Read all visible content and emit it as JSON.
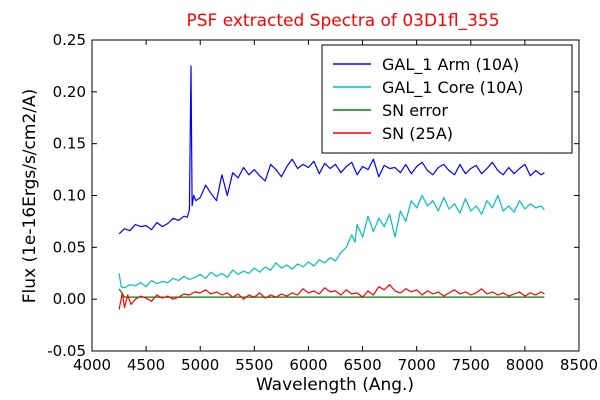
{
  "chart_data": {
    "type": "line",
    "title": "PSF extracted Spectra of 03D1fl_355",
    "title_color": "#ff0000",
    "xlabel": "Wavelength (Ang.)",
    "ylabel": "Flux (1e-16Ergs/s/cm2/A)",
    "xlim": [
      4000,
      8500
    ],
    "ylim": [
      -0.05,
      0.25
    ],
    "xticks": [
      4000,
      4500,
      5000,
      5500,
      6000,
      6500,
      7000,
      7500,
      8000,
      8500
    ],
    "xtick_labels": [
      "4000",
      "4500",
      "5000",
      "5500",
      "6000",
      "6500",
      "7000",
      "7500",
      "8000",
      "8500"
    ],
    "yticks": [
      -0.05,
      0.0,
      0.05,
      0.1,
      0.15,
      0.2,
      0.25
    ],
    "ytick_labels": [
      "-0.05",
      "0.00",
      "0.05",
      "0.10",
      "0.15",
      "0.20",
      "0.25"
    ],
    "grid": false,
    "legend_position": "top-right",
    "series": [
      {
        "name": "GAL_1 Arm (10A)",
        "color": "#0000ff",
        "x": [
          4250,
          4300,
          4350,
          4400,
          4450,
          4500,
          4550,
          4600,
          4650,
          4700,
          4750,
          4800,
          4850,
          4880,
          4900,
          4915,
          4925,
          4940,
          4960,
          5000,
          5050,
          5100,
          5150,
          5200,
          5250,
          5300,
          5350,
          5400,
          5450,
          5500,
          5550,
          5600,
          5650,
          5700,
          5750,
          5800,
          5850,
          5900,
          5950,
          6000,
          6050,
          6100,
          6150,
          6200,
          6250,
          6300,
          6350,
          6400,
          6450,
          6500,
          6550,
          6600,
          6650,
          6700,
          6750,
          6800,
          6850,
          6900,
          6950,
          7000,
          7050,
          7100,
          7150,
          7200,
          7250,
          7300,
          7350,
          7400,
          7450,
          7500,
          7550,
          7600,
          7650,
          7700,
          7750,
          7800,
          7850,
          7900,
          7950,
          8000,
          8050,
          8100,
          8150,
          8180
        ],
        "y": [
          0.063,
          0.068,
          0.066,
          0.072,
          0.07,
          0.071,
          0.067,
          0.074,
          0.07,
          0.073,
          0.078,
          0.076,
          0.08,
          0.079,
          0.086,
          0.225,
          0.09,
          0.1,
          0.095,
          0.098,
          0.11,
          0.102,
          0.095,
          0.12,
          0.1,
          0.122,
          0.117,
          0.127,
          0.12,
          0.125,
          0.119,
          0.114,
          0.13,
          0.125,
          0.118,
          0.128,
          0.135,
          0.126,
          0.13,
          0.127,
          0.133,
          0.121,
          0.131,
          0.126,
          0.13,
          0.122,
          0.128,
          0.132,
          0.12,
          0.128,
          0.125,
          0.135,
          0.118,
          0.129,
          0.126,
          0.127,
          0.122,
          0.13,
          0.121,
          0.128,
          0.132,
          0.124,
          0.12,
          0.127,
          0.13,
          0.124,
          0.12,
          0.13,
          0.121,
          0.126,
          0.129,
          0.121,
          0.126,
          0.132,
          0.124,
          0.12,
          0.127,
          0.121,
          0.126,
          0.13,
          0.119,
          0.124,
          0.12,
          0.122
        ]
      },
      {
        "name": "GAL_1 Core (10A)",
        "color": "#00bfbf",
        "x": [
          4250,
          4270,
          4300,
          4350,
          4400,
          4450,
          4500,
          4550,
          4600,
          4650,
          4700,
          4750,
          4800,
          4850,
          4900,
          4950,
          5000,
          5050,
          5100,
          5150,
          5200,
          5250,
          5300,
          5350,
          5400,
          5450,
          5500,
          5550,
          5600,
          5650,
          5700,
          5750,
          5800,
          5850,
          5900,
          5950,
          6000,
          6050,
          6100,
          6150,
          6200,
          6250,
          6300,
          6350,
          6400,
          6430,
          6450,
          6500,
          6550,
          6600,
          6650,
          6700,
          6750,
          6800,
          6850,
          6900,
          6950,
          7000,
          7050,
          7100,
          7150,
          7200,
          7250,
          7300,
          7350,
          7400,
          7450,
          7500,
          7550,
          7600,
          7650,
          7700,
          7750,
          7800,
          7850,
          7900,
          7950,
          8000,
          8050,
          8100,
          8150,
          8180
        ],
        "y": [
          0.025,
          0.012,
          0.011,
          0.014,
          0.013,
          0.016,
          0.012,
          0.018,
          0.015,
          0.017,
          0.016,
          0.02,
          0.018,
          0.022,
          0.019,
          0.021,
          0.024,
          0.02,
          0.026,
          0.022,
          0.025,
          0.021,
          0.028,
          0.024,
          0.027,
          0.025,
          0.03,
          0.026,
          0.031,
          0.028,
          0.035,
          0.03,
          0.033,
          0.029,
          0.034,
          0.031,
          0.036,
          0.032,
          0.038,
          0.035,
          0.04,
          0.037,
          0.045,
          0.05,
          0.062,
          0.055,
          0.072,
          0.06,
          0.08,
          0.065,
          0.078,
          0.07,
          0.082,
          0.06,
          0.085,
          0.075,
          0.095,
          0.088,
          0.1,
          0.09,
          0.095,
          0.085,
          0.098,
          0.087,
          0.092,
          0.083,
          0.097,
          0.085,
          0.09,
          0.082,
          0.095,
          0.088,
          0.1,
          0.085,
          0.09,
          0.084,
          0.095,
          0.087,
          0.092,
          0.088,
          0.09,
          0.086
        ]
      },
      {
        "name": "SN error",
        "color": "#008000",
        "x": [
          4250,
          4300,
          4400,
          4500,
          4600,
          4700,
          4800,
          4900,
          5000,
          5200,
          5400,
          5600,
          5800,
          6000,
          6200,
          6400,
          6600,
          6800,
          7000,
          7200,
          7400,
          7600,
          7800,
          8000,
          8180
        ],
        "y": [
          0.01,
          0.002,
          0.002,
          0.002,
          0.002,
          0.002,
          0.002,
          0.002,
          0.002,
          0.002,
          0.002,
          0.002,
          0.002,
          0.002,
          0.002,
          0.002,
          0.002,
          0.002,
          0.002,
          0.002,
          0.002,
          0.002,
          0.002,
          0.002,
          0.002
        ]
      },
      {
        "name": "SN (25A)",
        "color": "#ff0000",
        "x": [
          4250,
          4280,
          4300,
          4330,
          4360,
          4400,
          4450,
          4500,
          4550,
          4600,
          4650,
          4700,
          4750,
          4800,
          4850,
          4900,
          4950,
          5000,
          5050,
          5100,
          5150,
          5200,
          5250,
          5300,
          5350,
          5400,
          5450,
          5500,
          5550,
          5600,
          5650,
          5700,
          5750,
          5800,
          5850,
          5900,
          5950,
          6000,
          6050,
          6100,
          6150,
          6200,
          6250,
          6300,
          6350,
          6400,
          6450,
          6500,
          6550,
          6600,
          6650,
          6700,
          6750,
          6800,
          6850,
          6900,
          6950,
          7000,
          7050,
          7100,
          7150,
          7200,
          7250,
          7300,
          7350,
          7400,
          7450,
          7500,
          7550,
          7600,
          7650,
          7700,
          7750,
          7800,
          7850,
          7900,
          7950,
          8000,
          8050,
          8100,
          8150,
          8180
        ],
        "y": [
          -0.01,
          0.006,
          -0.008,
          0.004,
          -0.005,
          0.0,
          0.003,
          0.001,
          -0.002,
          0.004,
          0.001,
          0.003,
          0.0,
          0.002,
          0.005,
          0.004,
          0.007,
          0.006,
          0.009,
          0.005,
          0.007,
          0.004,
          0.006,
          0.002,
          0.005,
          0.0,
          0.004,
          0.002,
          0.006,
          0.001,
          0.004,
          0.002,
          0.005,
          0.003,
          0.006,
          0.004,
          0.01,
          0.006,
          0.008,
          0.005,
          0.011,
          0.007,
          0.008,
          0.004,
          0.009,
          0.005,
          0.006,
          0.002,
          0.008,
          0.004,
          0.012,
          0.009,
          0.014,
          0.008,
          0.006,
          0.01,
          0.007,
          0.009,
          0.004,
          0.008,
          0.005,
          0.007,
          0.003,
          0.006,
          0.009,
          0.005,
          0.007,
          0.004,
          0.006,
          0.01,
          0.005,
          0.007,
          0.004,
          0.006,
          0.003,
          0.005,
          0.007,
          0.003,
          0.006,
          0.004,
          0.007,
          0.005
        ]
      }
    ]
  }
}
